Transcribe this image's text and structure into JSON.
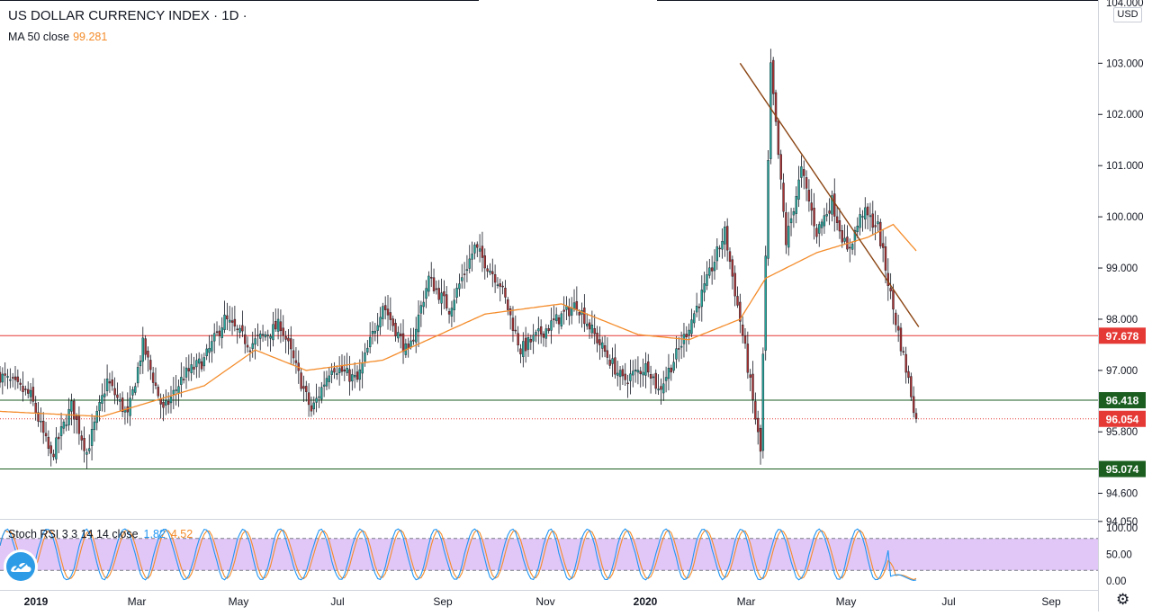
{
  "title": "US DOLLAR CURRENCY INDEX · 1D ·",
  "currency_label": "USD",
  "ma": {
    "label": "MA 50 close",
    "value": "99.281",
    "color": "#f48c2b"
  },
  "stoch": {
    "label": "Stoch RSI 3 3 14 14 close",
    "k": "1.82",
    "d": "4.52",
    "k_color": "#2196f3",
    "d_color": "#f48c2b",
    "band_color": "#e1c7f7"
  },
  "price_axis": {
    "ticks": [
      "103.000",
      "102.000",
      "101.000",
      "100.000",
      "99.000",
      "98.000",
      "97.000",
      "95.800",
      "94.600",
      "94.050"
    ],
    "tick_values": [
      103.0,
      102.0,
      101.0,
      100.0,
      99.0,
      98.0,
      97.0,
      95.8,
      94.6,
      94.05
    ],
    "range": [
      94.1,
      104.2
    ],
    "top_partial": "104.000",
    "partial_95": "95.800"
  },
  "stoch_axis": {
    "ticks": [
      "100.00",
      "50.00",
      "0.00"
    ],
    "tick_values": [
      100,
      50,
      0
    ],
    "range": [
      -5,
      105
    ],
    "upper_band": 80,
    "lower_band": 20
  },
  "time_axis": {
    "labels": [
      "2019",
      "Mar",
      "May",
      "Jul",
      "Sep",
      "Nov",
      "2020",
      "Mar",
      "May",
      "Jul",
      "Sep"
    ]
  },
  "price_markers": [
    {
      "label": "97.678",
      "value": 97.678,
      "style": "line",
      "color": "#e53935"
    },
    {
      "label": "96.418",
      "value": 96.418,
      "style": "line",
      "color": "#1b5e20"
    },
    {
      "label": "96.054",
      "value": 96.054,
      "style": "dotted",
      "color": "#e53935"
    },
    {
      "label": "95.074",
      "value": 95.074,
      "style": "line",
      "color": "#1b5e20"
    }
  ],
  "trendline": {
    "from": {
      "index": 290,
      "price": 103.0
    },
    "to": {
      "index": 360,
      "price": 97.85
    },
    "color": "#8b4513"
  },
  "colors": {
    "up": "#26a69a",
    "down": "#a83232",
    "wick": "#131722",
    "ma": "#f48c2b",
    "axis_text": "#131722",
    "label_text": "#ffffff"
  },
  "chart_data": {
    "type": "candlestick",
    "title": "US DOLLAR CURRENCY INDEX · 1D ·",
    "ylim": [
      94.1,
      104.2
    ],
    "x_labels": [
      "2019",
      "Mar",
      "May",
      "Jul",
      "Sep",
      "Nov",
      "2020",
      "Mar",
      "May",
      "Jul",
      "Sep"
    ],
    "price_anchors": [
      [
        0,
        96.9
      ],
      [
        12,
        96.5
      ],
      [
        20,
        95.3
      ],
      [
        28,
        96.3
      ],
      [
        34,
        95.4
      ],
      [
        42,
        96.8
      ],
      [
        50,
        96.1
      ],
      [
        56,
        97.5
      ],
      [
        64,
        96.2
      ],
      [
        72,
        96.9
      ],
      [
        80,
        97.2
      ],
      [
        88,
        98.0
      ],
      [
        98,
        97.5
      ],
      [
        110,
        97.9
      ],
      [
        122,
        96.2
      ],
      [
        130,
        97.1
      ],
      [
        140,
        96.8
      ],
      [
        150,
        98.3
      ],
      [
        160,
        97.3
      ],
      [
        168,
        98.8
      ],
      [
        176,
        98.2
      ],
      [
        186,
        99.4
      ],
      [
        196,
        98.7
      ],
      [
        204,
        97.4
      ],
      [
        216,
        97.9
      ],
      [
        226,
        98.3
      ],
      [
        234,
        97.6
      ],
      [
        244,
        96.8
      ],
      [
        254,
        97.1
      ],
      [
        258,
        96.6
      ],
      [
        266,
        97.4
      ],
      [
        276,
        98.6
      ],
      [
        284,
        99.7
      ],
      [
        292,
        97.4
      ],
      [
        298,
        95.4
      ],
      [
        302,
        102.9
      ],
      [
        308,
        99.5
      ],
      [
        314,
        100.9
      ],
      [
        320,
        99.7
      ],
      [
        326,
        100.3
      ],
      [
        332,
        99.3
      ],
      [
        338,
        100.1
      ],
      [
        344,
        99.8
      ],
      [
        350,
        98.2
      ],
      [
        356,
        96.8
      ],
      [
        359,
        96.05
      ]
    ],
    "ma50_anchors": [
      [
        0,
        96.2
      ],
      [
        40,
        96.1
      ],
      [
        80,
        96.7
      ],
      [
        100,
        97.4
      ],
      [
        120,
        97.0
      ],
      [
        150,
        97.2
      ],
      [
        190,
        98.1
      ],
      [
        220,
        98.3
      ],
      [
        250,
        97.7
      ],
      [
        270,
        97.6
      ],
      [
        290,
        98.0
      ],
      [
        300,
        98.8
      ],
      [
        320,
        99.3
      ],
      [
        340,
        99.6
      ],
      [
        350,
        99.85
      ],
      [
        360,
        99.28
      ]
    ],
    "stoch_rsi": {
      "k_last": 1.82,
      "d_last": 4.52,
      "bands": [
        20,
        80
      ]
    }
  }
}
